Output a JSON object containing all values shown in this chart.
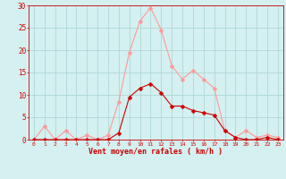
{
  "x": [
    0,
    1,
    2,
    3,
    4,
    5,
    6,
    7,
    8,
    9,
    10,
    11,
    12,
    13,
    14,
    15,
    16,
    17,
    18,
    19,
    20,
    21,
    22,
    23
  ],
  "y_moyen": [
    0,
    0,
    0,
    0,
    0,
    0,
    0,
    0,
    1.5,
    9.5,
    11.5,
    12.5,
    10.5,
    7.5,
    7.5,
    6.5,
    6.0,
    5.5,
    2.0,
    0.5,
    0,
    0,
    0.5,
    0
  ],
  "y_rafales": [
    0,
    3,
    0,
    2,
    0,
    1,
    0,
    1,
    8.5,
    19.5,
    26.5,
    29.5,
    24.5,
    16.5,
    13.5,
    15.5,
    13.5,
    11.5,
    2.0,
    0.5,
    2,
    0.5,
    1,
    0.5
  ],
  "color_moyen": "#cc0000",
  "color_rafales": "#ff9999",
  "bg_color": "#d4f0f0",
  "grid_color": "#b0d8d8",
  "xlabel": "Vent moyen/en rafales ( km/h )",
  "xlabel_color": "#cc0000",
  "tick_color": "#cc0000",
  "ylim": [
    0,
    30
  ],
  "yticks": [
    0,
    5,
    10,
    15,
    20,
    25,
    30
  ],
  "xlim": [
    -0.5,
    23.5
  ]
}
